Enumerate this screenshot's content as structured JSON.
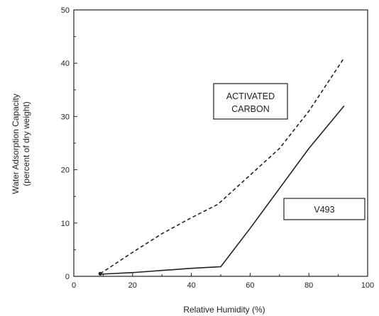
{
  "chart_data": {
    "type": "line",
    "title": "",
    "xlabel": "Relative Humidity (%)",
    "ylabel_lines": [
      "Water Adsorption Capacity",
      "(percent of dry weight)"
    ],
    "xlim": [
      0,
      100
    ],
    "ylim": [
      0,
      50
    ],
    "xticks": [
      0,
      20,
      40,
      60,
      80,
      100
    ],
    "yticks": [
      0,
      10,
      20,
      30,
      40,
      50
    ],
    "xtick_labels": [
      "0",
      "20",
      "40",
      "60",
      "80",
      "100"
    ],
    "ytick_labels": [
      "0",
      "10",
      "20",
      "30",
      "40",
      "50"
    ],
    "grid": false,
    "legend": "none",
    "series": [
      {
        "name": "ACTIVATED CARBON",
        "style": "dashed",
        "color": "#222222",
        "x": [
          9,
          20,
          30,
          40,
          49,
          60,
          70,
          80,
          92
        ],
        "y": [
          0.5,
          4.5,
          8.0,
          11.0,
          13.5,
          19.0,
          24.0,
          31.0,
          41.0
        ]
      },
      {
        "name": "V493",
        "style": "solid",
        "color": "#222222",
        "x": [
          9,
          20,
          30,
          40,
          50,
          60,
          70,
          80,
          92
        ],
        "y": [
          0.4,
          0.7,
          1.1,
          1.5,
          1.8,
          9.0,
          16.5,
          24.0,
          32.0
        ]
      }
    ],
    "annotations": [
      {
        "lines": [
          "ACTIVATED",
          "CARBON"
        ],
        "series": "ACTIVATED CARBON"
      },
      {
        "lines": [
          "V493"
        ],
        "series": "V493"
      }
    ]
  }
}
